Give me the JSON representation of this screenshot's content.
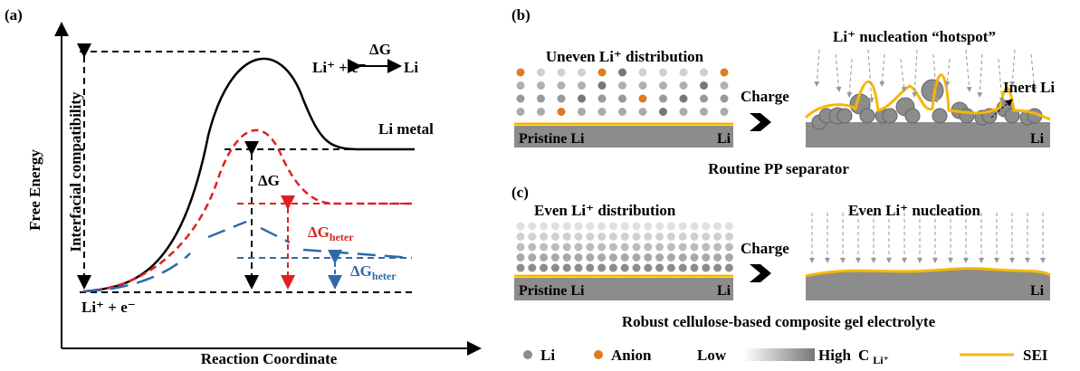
{
  "panel_a": {
    "label": "(a)",
    "y_axis": "Free Energy",
    "x_axis": "Reaction Coordinate",
    "reaction_left": "Li⁺ + e⁻",
    "reaction_top": "ΔG",
    "reaction_right": "Li",
    "y_arrow": "Interfacial compatibility",
    "li_metal": "Li metal",
    "reactant": "Li⁺ + e⁻",
    "dg": "ΔG",
    "dg_heter_red": {
      "main": "ΔG",
      "sub": "heter"
    },
    "dg_heter_blue": {
      "main": "ΔG",
      "sub": "heter"
    }
  },
  "panel_b": {
    "label": "(b)",
    "left_title": "Uneven Li⁺ distribution",
    "right_title": "Li⁺ nucleation “hotspot”",
    "charge": "Charge",
    "inert": "Inert Li",
    "pristine": "Pristine Li",
    "li_left": "Li",
    "li_right": "Li",
    "caption": "Routine PP separator"
  },
  "panel_c": {
    "label": "(c)",
    "left_title": "Even Li⁺ distribution",
    "right_title": "Even Li⁺ nucleation",
    "charge": "Charge",
    "pristine": "Pristine Li",
    "li_left": "Li",
    "li_right": "Li",
    "caption": "Robust cellulose-based composite gel electrolyte"
  },
  "legend": {
    "li": "Li",
    "anion": "Anion",
    "low": "Low",
    "high": "High",
    "c": {
      "main": "C",
      "sub": "Li⁺"
    },
    "sei": "SEI"
  }
}
